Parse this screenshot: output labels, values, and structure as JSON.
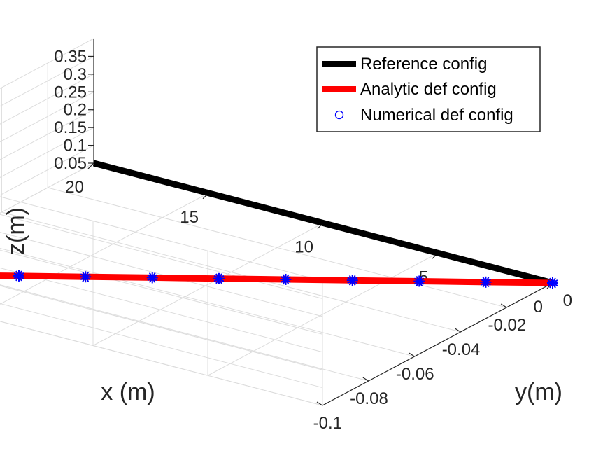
{
  "chart_data": {
    "type": "line",
    "projection": "3d",
    "title": "",
    "xlabel": "x (m)",
    "ylabel": "y(m)",
    "zlabel": "z(m)",
    "xlim": [
      0,
      20
    ],
    "ylim": [
      -0.1,
      0
    ],
    "zlim": [
      0.05,
      0.4
    ],
    "grid": true,
    "legend_position": "top-right",
    "x_ticks": [
      "0",
      "5",
      "10",
      "15",
      "20"
    ],
    "y_ticks": [
      "-0.1",
      "-0.08",
      "-0.06",
      "-0.04",
      "-0.02",
      "0"
    ],
    "z_ticks": [
      "0.05",
      "0.1",
      "0.15",
      "0.2",
      "0.25",
      "0.3",
      "0.35"
    ],
    "series": [
      {
        "name": "Reference config",
        "color": "#000000",
        "style": "line",
        "x": [
          0,
          20
        ],
        "y": [
          0,
          0
        ],
        "z": [
          0.05,
          0.05
        ]
      },
      {
        "name": "Analytic def config",
        "color": "#ff0000",
        "style": "line",
        "x": [
          0,
          2,
          4,
          6,
          8,
          10,
          12,
          14,
          16,
          18,
          20
        ],
        "y": [
          0,
          -0.0091,
          -0.0181,
          -0.0272,
          -0.0362,
          -0.0453,
          -0.0543,
          -0.0634,
          -0.0724,
          -0.0815,
          -0.0905
        ],
        "z": [
          0.05,
          0.05,
          0.05,
          0.05,
          0.05,
          0.05,
          0.05,
          0.05,
          0.05,
          0.05,
          0.05
        ]
      },
      {
        "name": "Numerical def config",
        "color": "#0000ff",
        "style": "markers",
        "x": [
          0,
          2,
          4,
          6,
          8,
          10,
          12,
          14,
          16,
          18,
          20
        ],
        "y": [
          0,
          -0.0091,
          -0.0181,
          -0.0272,
          -0.0362,
          -0.0453,
          -0.0543,
          -0.0634,
          -0.0724,
          -0.0815,
          -0.0905
        ],
        "z": [
          0.05,
          0.05,
          0.05,
          0.05,
          0.05,
          0.05,
          0.05,
          0.05,
          0.05,
          0.05,
          0.05
        ]
      }
    ]
  }
}
